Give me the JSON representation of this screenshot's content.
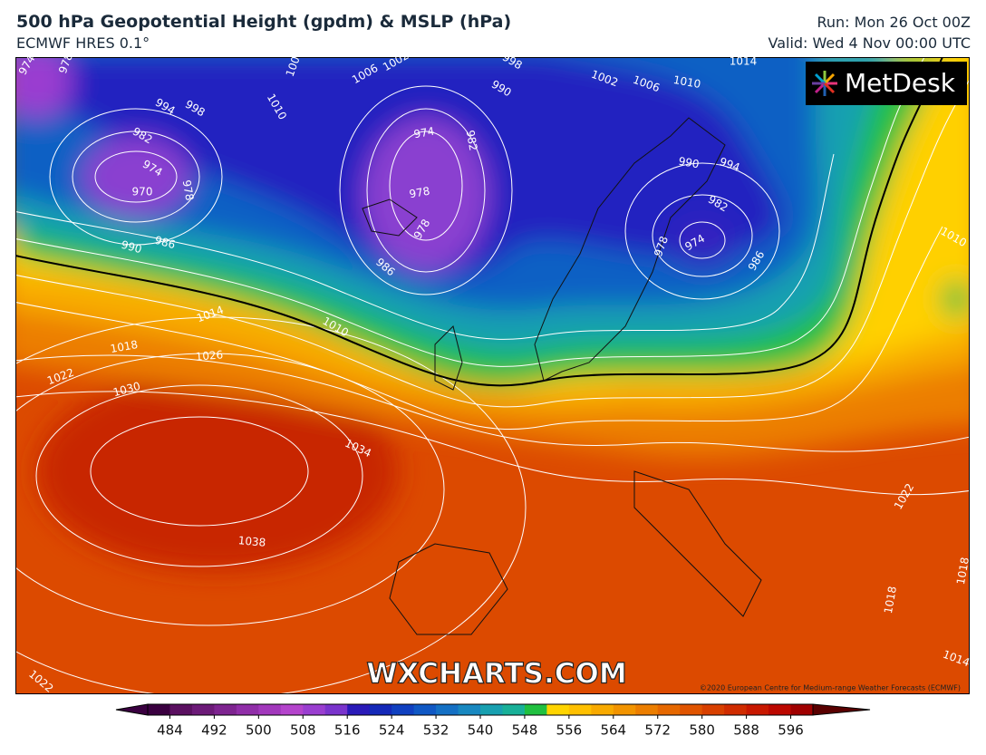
{
  "header": {
    "title": "500 hPa Geopotential Height (gpdm) & MSLP (hPa)",
    "subtitle": "ECMWF HRES 0.1°",
    "run": "Run: Mon 26 Oct 00Z",
    "valid": "Valid: Wed 4 Nov 00:00 UTC"
  },
  "map": {
    "logo": "MetDesk",
    "watermark": "WXCHARTS.COM",
    "copyright": "©2020 European Centre for Medium-range Weather Forecasts (ECMWF)",
    "contour_labels": [
      974,
      978,
      994,
      982,
      974,
      970,
      978,
      990,
      986,
      1006,
      1010,
      1006,
      1002,
      998,
      990,
      974,
      982,
      978,
      978,
      986,
      1002,
      1006,
      1010,
      1014,
      998,
      990,
      994,
      982,
      978,
      974,
      986,
      1010,
      1014,
      1018,
      1026,
      1022,
      1030,
      1010,
      1034,
      1038,
      1022,
      1018,
      1014,
      1022,
      1018
    ]
  },
  "colorbar": {
    "bins": [
      480,
      484,
      488,
      492,
      496,
      500,
      504,
      508,
      512,
      516,
      520,
      524,
      528,
      532,
      536,
      540,
      544,
      548,
      552,
      556,
      560,
      564,
      568,
      572,
      576,
      580,
      584,
      588,
      592,
      596,
      600
    ],
    "colors": [
      "#3a0040",
      "#5a1060",
      "#6c1a78",
      "#7e2490",
      "#902ea8",
      "#a238bc",
      "#b444cc",
      "#9a3ed0",
      "#7a34cc",
      "#2a1ab8",
      "#1428b8",
      "#1040c0",
      "#1058c4",
      "#1470c4",
      "#1888c0",
      "#18a0b0",
      "#18b098",
      "#20c040",
      "#ffd400",
      "#ffc000",
      "#f8aa00",
      "#f29400",
      "#ec7e00",
      "#e66800",
      "#e05400",
      "#d84000",
      "#d02c00",
      "#c81800",
      "#bc0800",
      "#a00000"
    ],
    "under_color": "#3a0040",
    "over_color": "#5a0000",
    "ticks": [
      484,
      492,
      500,
      508,
      516,
      524,
      532,
      540,
      548,
      556,
      564,
      572,
      580,
      588,
      596
    ]
  }
}
